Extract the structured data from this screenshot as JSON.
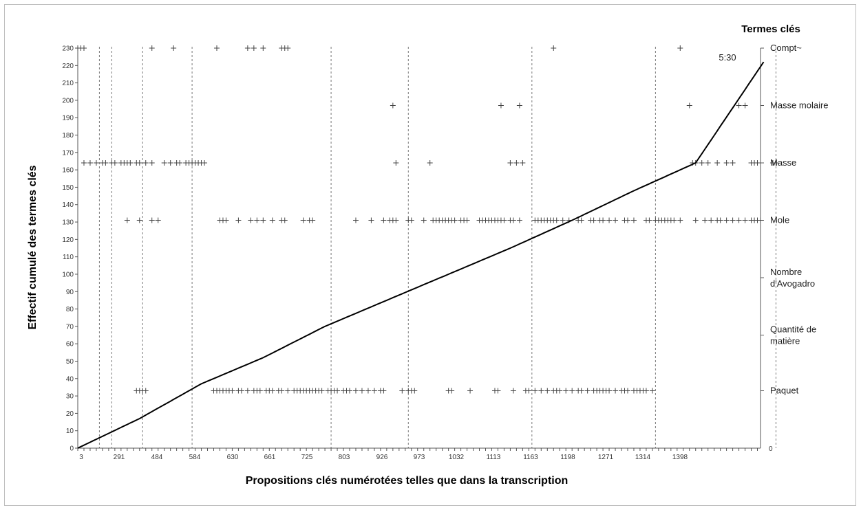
{
  "chart_data": {
    "type": "line",
    "title": "",
    "xlabel": "Propositions clés numérotées telles que dans la transcription",
    "ylabel": "Effectif cumulé des termes clés",
    "right_title": "Termes clés",
    "annotation": "5:30",
    "ylim": [
      0,
      230
    ],
    "y_ticks": [
      0,
      10,
      20,
      30,
      40,
      50,
      60,
      70,
      80,
      90,
      100,
      110,
      120,
      130,
      140,
      150,
      160,
      170,
      180,
      190,
      200,
      210,
      220,
      230
    ],
    "right_zero_label": "0",
    "x_tick_labels": [
      "3",
      "291",
      "484",
      "584",
      "630",
      "661",
      "725",
      "803",
      "926",
      "973",
      "1032",
      "1113",
      "1163",
      "1198",
      "1271",
      "1314",
      "1398"
    ],
    "x_count": 222,
    "grid": false,
    "line_color": "#000000",
    "marker_color": "#444444",
    "segment_boundaries": [
      7,
      11,
      21,
      37,
      82,
      107,
      147,
      187,
      226
    ],
    "series": [
      {
        "name": "",
        "x": [
          0,
          20,
          40,
          60,
          80,
          100,
          120,
          140,
          160,
          180,
          200,
          222
        ],
        "values": [
          0,
          17,
          37,
          52,
          70,
          85,
          100,
          115,
          131,
          148,
          164,
          222
        ],
        "note_values": "y equals cumulative count; y rises roughly 1 per proposition"
      }
    ],
    "term_rows": [
      {
        "label": "Compt~",
        "y": 230,
        "positions": [
          0,
          1,
          2,
          24,
          31,
          45,
          55,
          57,
          60,
          66,
          67,
          68,
          154,
          195
        ]
      },
      {
        "label": "Masse molaire",
        "y": 197,
        "positions": [
          102,
          137,
          143,
          198,
          214,
          216
        ]
      },
      {
        "label": "Masse",
        "y": 164,
        "positions": [
          2,
          4,
          6,
          8,
          9,
          11,
          12,
          14,
          15,
          16,
          17,
          19,
          20,
          22,
          24,
          28,
          30,
          32,
          33,
          35,
          36,
          37,
          38,
          39,
          40,
          41,
          103,
          114,
          140,
          142,
          144,
          199,
          200,
          202,
          204,
          207,
          210,
          212,
          218,
          219,
          220,
          225,
          226
        ]
      },
      {
        "label": "Mole",
        "y": 131,
        "positions": [
          16,
          20,
          24,
          26,
          46,
          47,
          48,
          52,
          56,
          58,
          60,
          63,
          66,
          67,
          73,
          75,
          76,
          90,
          95,
          99,
          101,
          102,
          103,
          107,
          108,
          112,
          115,
          116,
          117,
          118,
          119,
          120,
          121,
          122,
          124,
          125,
          126,
          130,
          131,
          132,
          133,
          134,
          135,
          136,
          137,
          138,
          140,
          141,
          143,
          148,
          149,
          150,
          151,
          152,
          153,
          154,
          155,
          157,
          159,
          162,
          163,
          166,
          167,
          169,
          170,
          172,
          174,
          177,
          178,
          180,
          184,
          185,
          187,
          188,
          189,
          190,
          191,
          192,
          193,
          195,
          200,
          203,
          205,
          207,
          208,
          210,
          212,
          214,
          216,
          218,
          219,
          220,
          221
        ]
      },
      {
        "label": "Nombre d'Avogadro",
        "y": 98,
        "positions": []
      },
      {
        "label": "Quantité de matière",
        "y": 65,
        "positions": []
      },
      {
        "label": "Paquet",
        "y": 33,
        "positions": [
          19,
          20,
          21,
          22,
          44,
          45,
          46,
          47,
          48,
          49,
          50,
          52,
          53,
          55,
          57,
          58,
          59,
          61,
          62,
          63,
          65,
          66,
          68,
          70,
          71,
          72,
          73,
          74,
          75,
          76,
          77,
          78,
          79,
          81,
          82,
          83,
          84,
          86,
          87,
          88,
          90,
          92,
          94,
          96,
          98,
          99,
          105,
          107,
          108,
          109,
          120,
          121,
          127,
          135,
          136,
          141,
          145,
          146,
          148,
          150,
          152,
          154,
          155,
          156,
          158,
          160,
          162,
          163,
          165,
          167,
          168,
          169,
          170,
          171,
          172,
          174,
          176,
          177,
          178,
          180,
          181,
          182,
          183,
          184,
          186
        ]
      }
    ]
  }
}
